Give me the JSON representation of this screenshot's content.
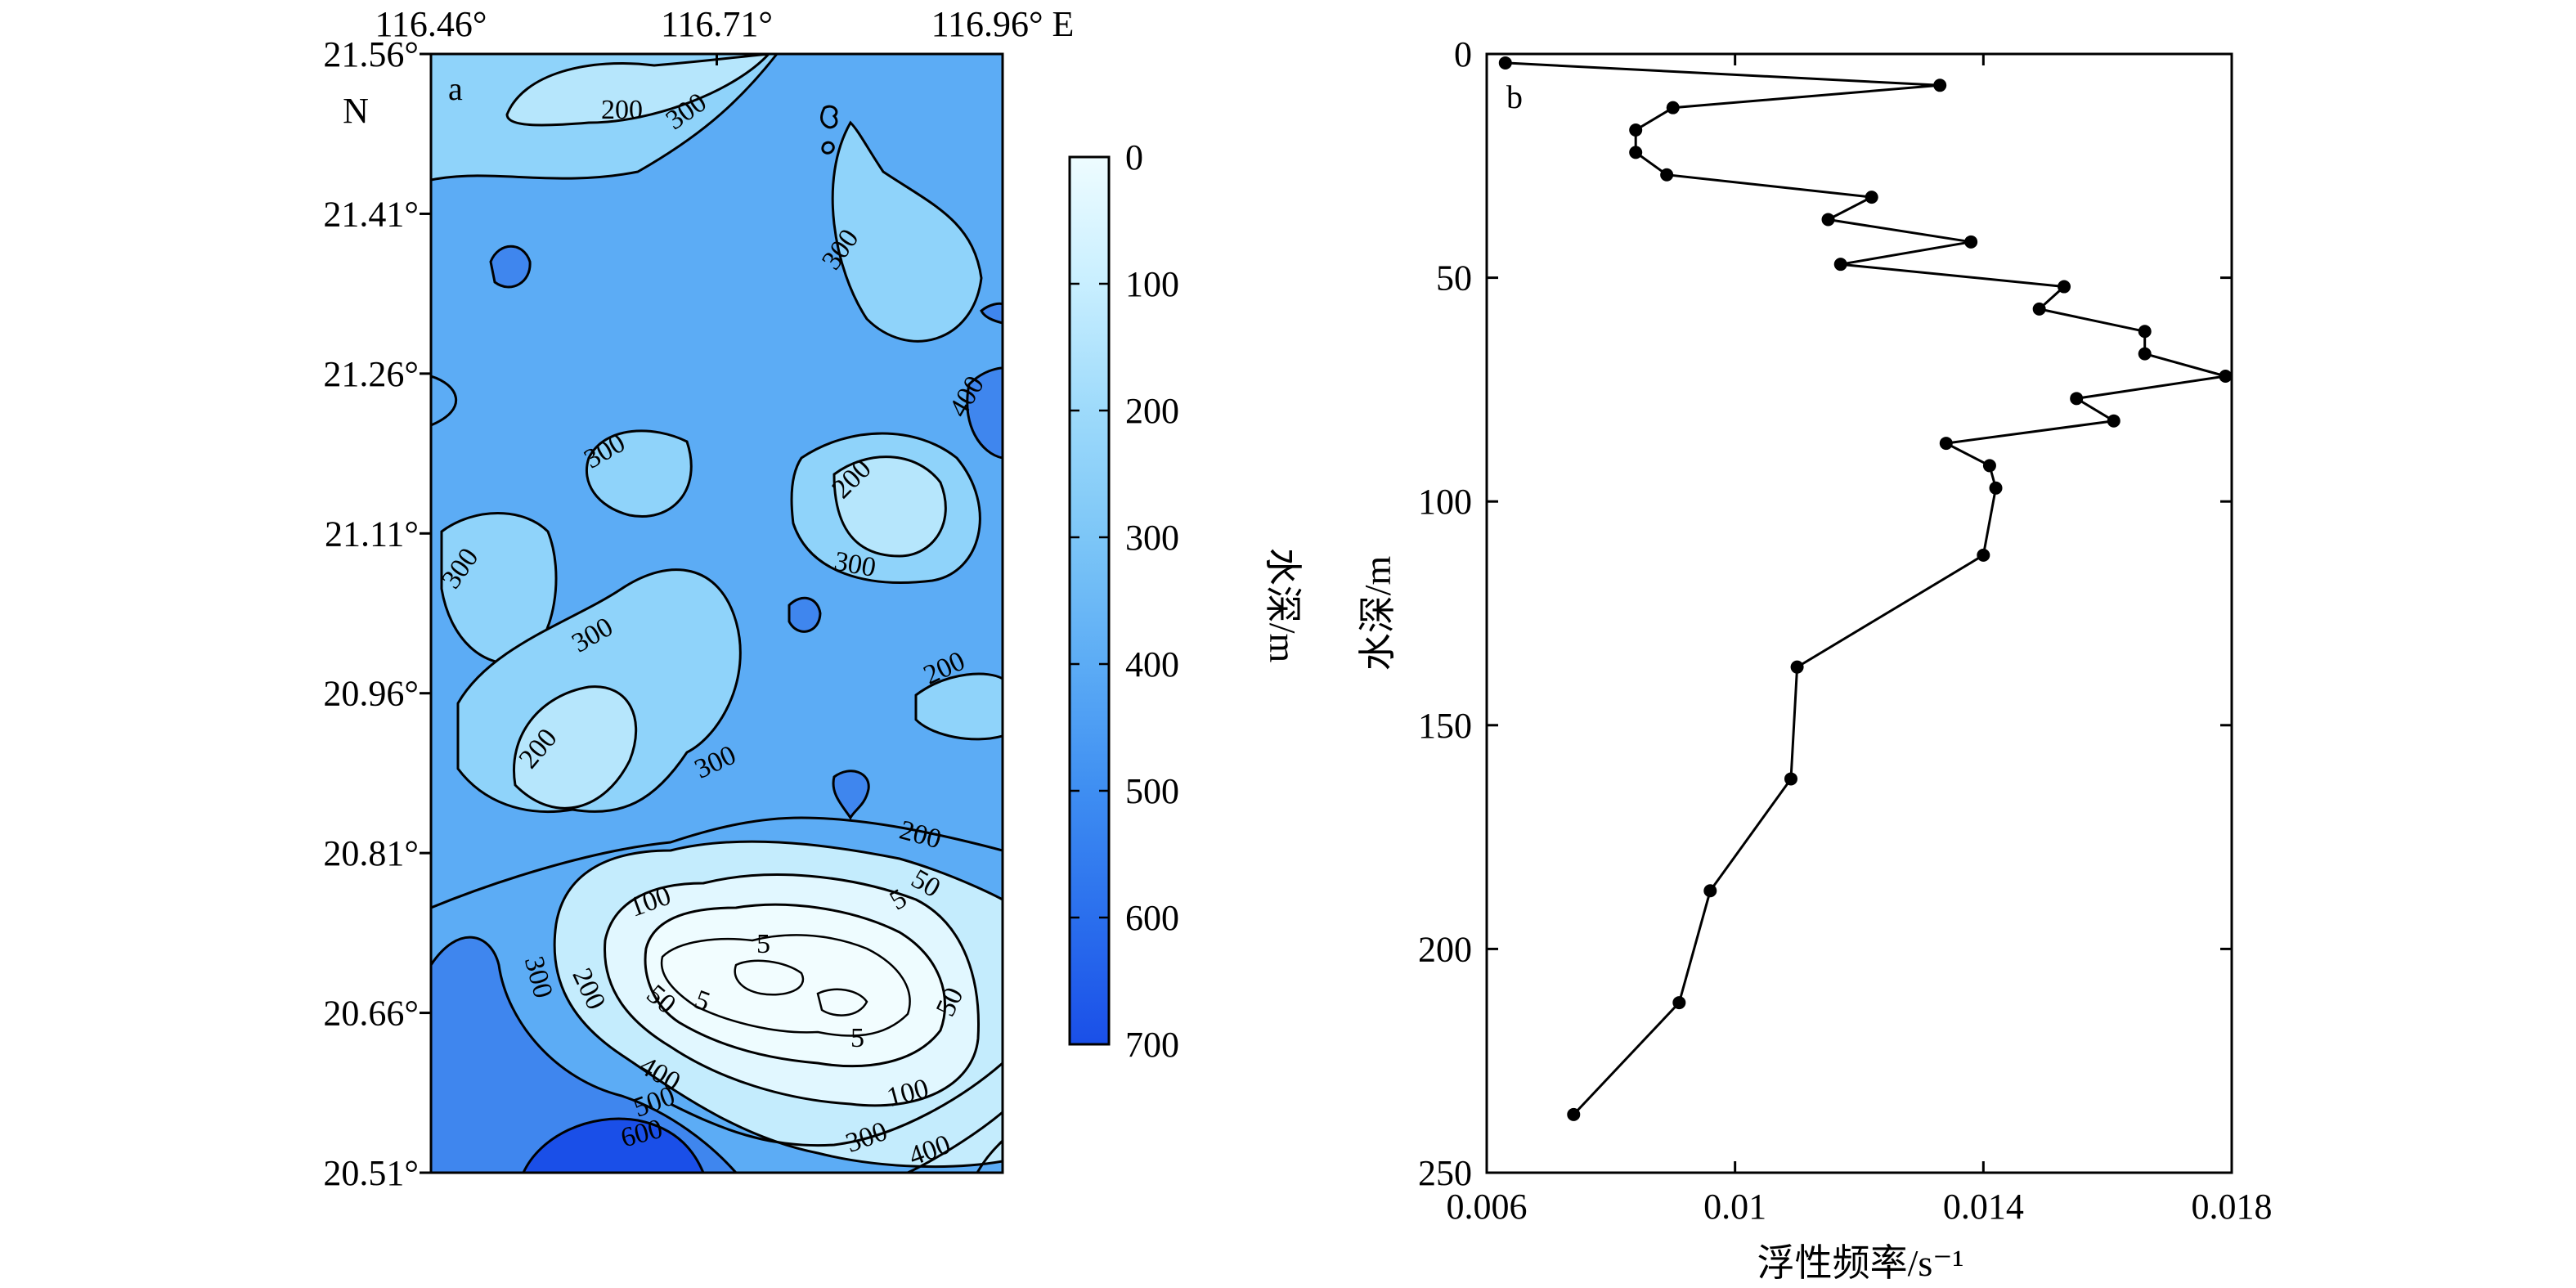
{
  "chart_data": [
    {
      "panel": "a",
      "type": "heatmap",
      "xlabel": "",
      "ylabel": "",
      "x_ticks": [
        "116.46°",
        "116.71°",
        "116.96° E"
      ],
      "y_ticks": [
        "21.56°",
        "21.41°",
        "21.26°",
        "21.11°",
        "20.96°",
        "20.81°",
        "20.66°",
        "20.51°"
      ],
      "y_unit_label": "N",
      "xlim": [
        116.46,
        116.96
      ],
      "ylim": [
        20.51,
        21.56
      ],
      "colorbar": {
        "label": "水深/m",
        "ticks": [
          "0",
          "100",
          "200",
          "300",
          "400",
          "500",
          "600",
          "700"
        ],
        "range": [
          0,
          700
        ],
        "colors": [
          "#eefcff",
          "#1a4fe8"
        ]
      },
      "contour_labels": [
        "200",
        "300",
        "300",
        "400",
        "300",
        "200",
        "300",
        "300",
        "300",
        "200",
        "300",
        "200",
        "200",
        "100",
        "5",
        "5",
        "50",
        "50",
        "5",
        "5",
        "50",
        "300",
        "200",
        "400",
        "500",
        "600",
        "100",
        "300",
        "400"
      ]
    },
    {
      "panel": "b",
      "type": "line",
      "xlabel": "浮性频率/s⁻¹",
      "ylabel": "水深/m",
      "xlim": [
        0.006,
        0.018
      ],
      "ylim": [
        0,
        250
      ],
      "y_inverted": true,
      "x_ticks": [
        "0.006",
        "0.01",
        "0.014",
        "0.018"
      ],
      "y_ticks": [
        "0",
        "50",
        "100",
        "150",
        "200",
        "250"
      ],
      "series": [
        {
          "x": [
            0.0063,
            0.0133,
            0.009,
            0.0084,
            0.0084,
            0.0089,
            0.0122,
            0.0115,
            0.0138,
            0.0117,
            0.0153,
            0.0149,
            0.0166,
            0.0166,
            0.0179,
            0.0155,
            0.0161,
            0.0134,
            0.0141,
            0.0142,
            0.014,
            0.011,
            0.0109,
            0.0096,
            0.0091,
            0.0074
          ],
          "y": [
            2,
            7,
            12,
            17,
            22,
            27,
            32,
            37,
            42,
            47,
            52,
            57,
            62,
            67,
            72,
            77,
            82,
            87,
            92,
            97,
            112,
            137,
            162,
            187,
            212,
            237
          ]
        }
      ]
    }
  ],
  "panel_labels": {
    "a": "a",
    "b": "b"
  },
  "colors": {
    "deep": "#1a4fe8",
    "shallow": "#eefcff",
    "base": "#5cacf5"
  }
}
